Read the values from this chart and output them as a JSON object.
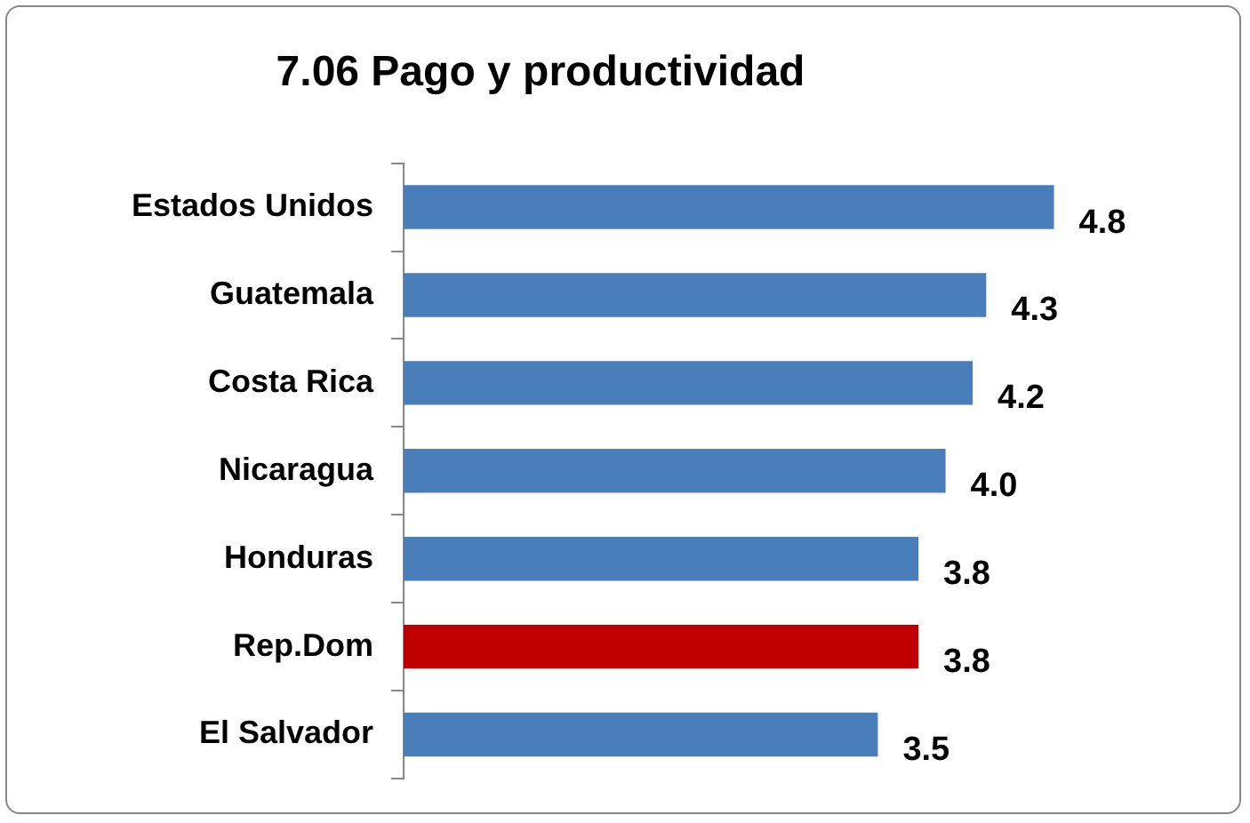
{
  "chart_data": {
    "type": "bar",
    "orientation": "horizontal",
    "title": "7.06 Pago y productividad",
    "categories": [
      "Estados Unidos",
      "Guatemala",
      "Costa Rica",
      "Nicaragua",
      "Honduras",
      "Rep.Dom",
      "El Salvador"
    ],
    "values": [
      4.8,
      4.3,
      4.2,
      4.0,
      3.8,
      3.8,
      3.5
    ],
    "colors": [
      "#4a7ebb",
      "#4a7ebb",
      "#4a7ebb",
      "#4a7ebb",
      "#4a7ebb",
      "#c00000",
      "#4a7ebb"
    ],
    "value_labels": [
      "4.8",
      "4.3",
      "4.2",
      "4.0",
      "3.8",
      "3.8",
      "3.5"
    ],
    "tick_labels": "y"
  }
}
